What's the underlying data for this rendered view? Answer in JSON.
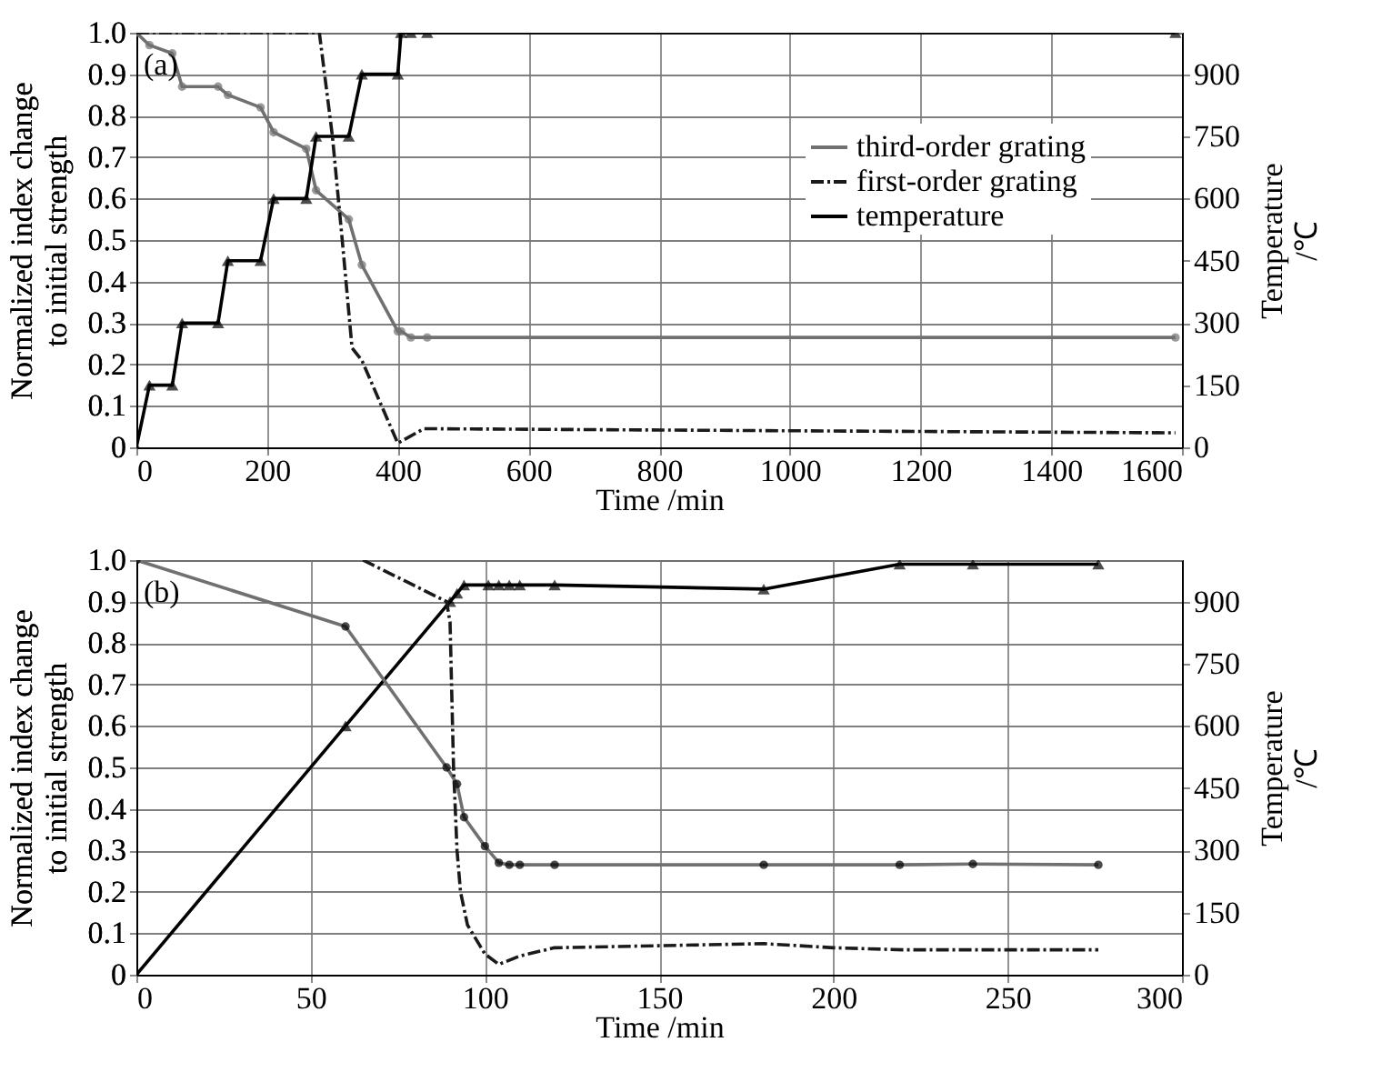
{
  "chart_data": [
    {
      "type": "line",
      "xlabel": "Time /min",
      "ylabel": "Normalized index change to initial strength",
      "y2label": "Temperature /℃",
      "xlim": [
        0,
        1600
      ],
      "xticks": [
        0,
        200,
        400,
        600,
        800,
        1000,
        1200,
        1400,
        1600
      ],
      "ylim": [
        0,
        1
      ],
      "yticks": [
        0,
        0.1,
        0.2,
        0.3,
        0.4,
        0.5,
        0.6,
        0.7,
        0.8,
        0.9,
        {
          "value": 1,
          "label": "1.0"
        }
      ],
      "y2lim": [
        0,
        1000
      ],
      "y2ticks": [
        0,
        150,
        300,
        450,
        600,
        750,
        900
      ],
      "grid": true,
      "legend": "top right",
      "annotations": [
        "(a)"
      ],
      "series": [
        {
          "name": "third-order grating",
          "color": "#707070",
          "marker": "circle",
          "line_style": "solid",
          "x": [
            0,
            20,
            55,
            70,
            125,
            140,
            190,
            210,
            260,
            275,
            325,
            345,
            400,
            405,
            420,
            445,
            1590
          ],
          "values": [
            1.0,
            0.97,
            0.95,
            0.87,
            0.87,
            0.85,
            0.82,
            0.76,
            0.72,
            0.62,
            0.55,
            0.44,
            0.28,
            0.28,
            0.265,
            0.265,
            0.265
          ]
        },
        {
          "name": "first-order grating",
          "color": "#1a1a1a",
          "marker": "none",
          "line_style": "dashed",
          "x": [
            0,
            280,
            300,
            315,
            330,
            345,
            400,
            440,
            1000,
            1590
          ],
          "values": [
            1.0,
            1.0,
            0.75,
            0.5,
            0.24,
            0.21,
            0.01,
            0.045,
            0.04,
            0.035
          ]
        },
        {
          "name": "temperature",
          "color": "#000000",
          "marker": "triangle",
          "line_style": "solid",
          "axis": "y2",
          "x": [
            0,
            20,
            55,
            70,
            125,
            140,
            190,
            210,
            260,
            275,
            325,
            345,
            400,
            405,
            420,
            445,
            1590
          ],
          "values": [
            0,
            150,
            150,
            300,
            300,
            450,
            450,
            600,
            600,
            750,
            750,
            900,
            900,
            1000,
            1000,
            1000,
            1000
          ]
        }
      ]
    },
    {
      "type": "line",
      "xlabel": "Time /min",
      "ylabel": "Normalized index change to initial strength",
      "y2label": "Temperature /℃",
      "xlim": [
        0,
        300
      ],
      "xticks": [
        0,
        50,
        100,
        150,
        200,
        250,
        300
      ],
      "ylim": [
        0,
        1
      ],
      "yticks": [
        0,
        0.1,
        0.2,
        0.3,
        0.4,
        0.5,
        0.6,
        0.7,
        0.8,
        0.9,
        {
          "value": 1,
          "label": "1.0"
        }
      ],
      "y2lim": [
        0,
        1000
      ],
      "y2ticks": [
        0,
        150,
        300,
        450,
        600,
        750,
        900
      ],
      "grid": true,
      "legend": "top right",
      "annotations": [
        "(b)"
      ],
      "series": [
        {
          "name": "temperature",
          "color": "#000000",
          "marker": "triangle",
          "line_style": "solid",
          "axis": "y2",
          "x": [
            0,
            60,
            90,
            92,
            94,
            101,
            104,
            107,
            110,
            120,
            180,
            219,
            240,
            276
          ],
          "values": [
            0,
            600,
            900,
            920,
            940,
            940,
            940,
            940,
            940,
            940,
            930,
            990,
            990,
            990
          ]
        },
        {
          "name": "third-order grating",
          "color": "#000000",
          "marker": "circle",
          "line_style": "solid",
          "x": [
            0,
            60,
            89,
            92,
            94,
            100,
            104,
            107,
            110,
            120,
            180,
            219,
            240,
            276
          ],
          "values": [
            1.0,
            0.84,
            0.5,
            0.46,
            0.38,
            0.31,
            0.27,
            0.265,
            0.265,
            0.265,
            0.265,
            0.265,
            0.267,
            0.265
          ]
        },
        {
          "name": "first-order grating",
          "color": "#1a1a1a",
          "marker": "none",
          "line_style": "dashed",
          "x": [
            65,
            89,
            90,
            91,
            92,
            93,
            95,
            100,
            104,
            110,
            120,
            150,
            180,
            200,
            220,
            276
          ],
          "values": [
            1.0,
            0.9,
            0.85,
            0.5,
            0.3,
            0.2,
            0.12,
            0.05,
            0.025,
            0.045,
            0.065,
            0.07,
            0.075,
            0.065,
            0.06,
            0.06
          ]
        }
      ]
    }
  ]
}
